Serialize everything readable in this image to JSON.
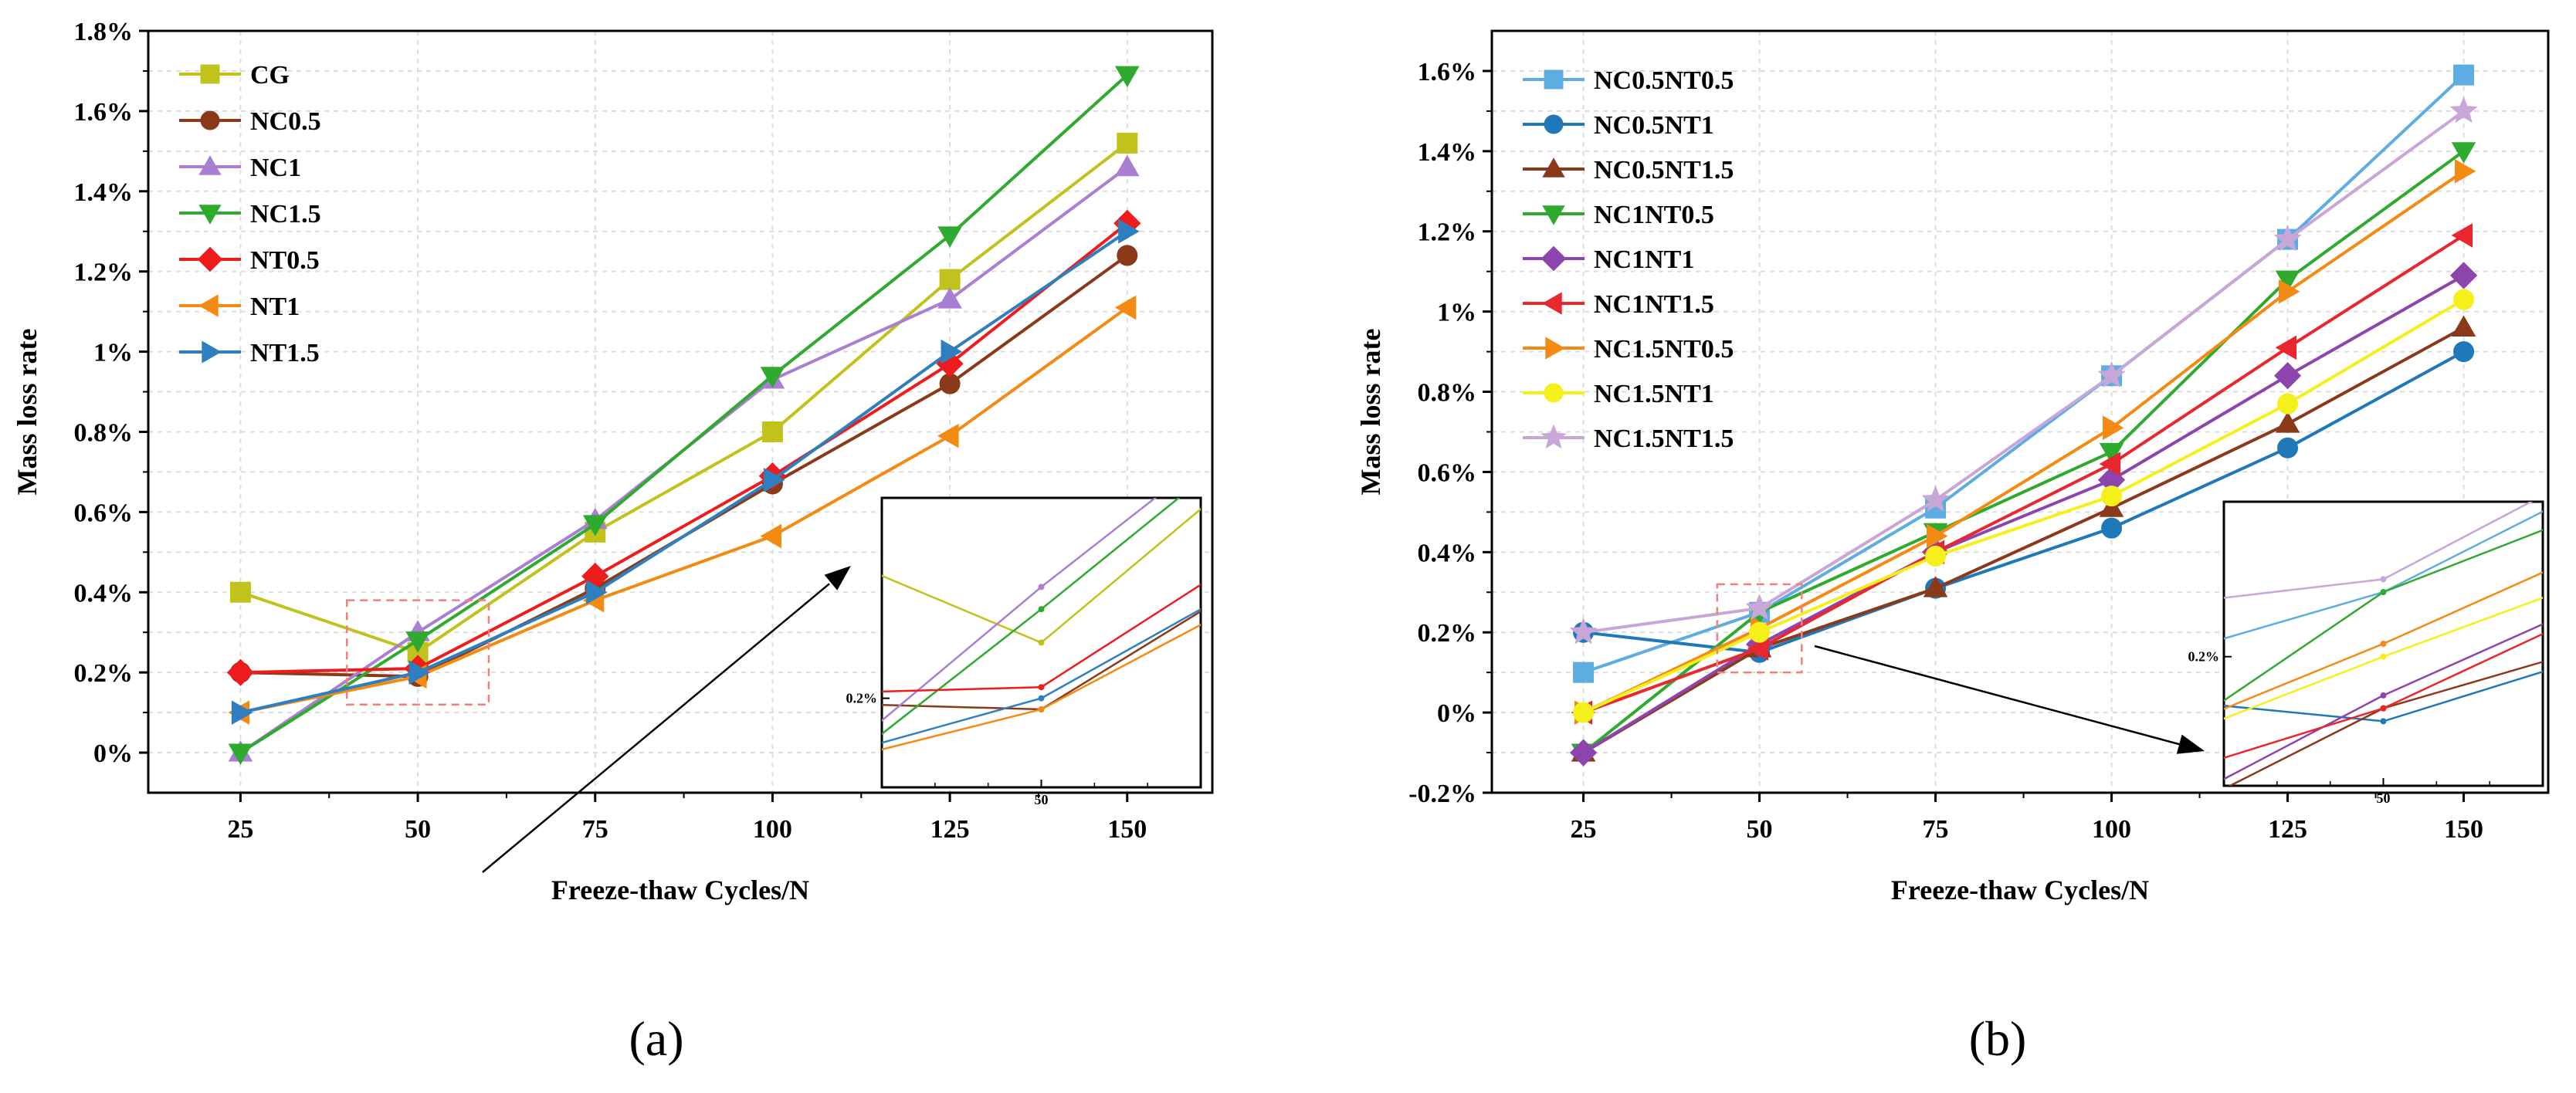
{
  "colors": {
    "CG": "#c2c21c",
    "NC0.5": "#8b3a19",
    "NC1": "#a97fd3",
    "NC1.5": "#2eaa2e",
    "NT0.5": "#ee1c1c",
    "NT1": "#f58a12",
    "NT1.5": "#2e7fc0",
    "NC0.5NT0.5": "#5dade2",
    "NC0.5NT1": "#1f78b8",
    "NC0.5NT1.5": "#8b3a19",
    "NC1NT0.5": "#2eaa2e",
    "NC1NT1": "#8e44ad",
    "NC1NT1.5": "#e8272e",
    "NC1.5NT0.5": "#f58a12",
    "NC1.5NT1": "#f5f01a",
    "NC1.5NT1.5": "#c9a6d8",
    "zoom_box": "#f08080",
    "grid": "#dddddd"
  },
  "chart_data": [
    {
      "type": "line",
      "panel_label": "(a)",
      "xlabel": "Freeze-thaw Cycles/N",
      "ylabel": "Mass loss rate",
      "xlim": [
        12,
        162
      ],
      "ylim": [
        -0.1,
        1.8
      ],
      "x": [
        25,
        50,
        75,
        100,
        125,
        150
      ],
      "x_tick_labels": [
        "25",
        "50",
        "75",
        "100",
        "125",
        "150"
      ],
      "y_ticks": [
        0,
        0.2,
        0.4,
        0.6,
        0.8,
        1.0,
        1.2,
        1.4,
        1.6,
        1.8
      ],
      "y_tick_labels": [
        "0%",
        "0.2%",
        "0.4%",
        "0.6%",
        "0.8%",
        "1%",
        "1.2%",
        "1.4%",
        "1.6%",
        "1.8%"
      ],
      "grid": true,
      "legend_position": "top-left",
      "series": [
        {
          "name": "CG",
          "marker": "square",
          "values": [
            0.4,
            0.25,
            0.55,
            0.8,
            1.18,
            1.52
          ]
        },
        {
          "name": "NC0.5",
          "marker": "circle",
          "values": [
            0.2,
            0.19,
            0.41,
            0.67,
            0.92,
            1.24
          ]
        },
        {
          "name": "NC1",
          "marker": "triangle-up",
          "values": [
            0.0,
            0.3,
            0.58,
            0.93,
            1.13,
            1.46
          ]
        },
        {
          "name": "NC1.5",
          "marker": "triangle-down",
          "values": [
            0.0,
            0.28,
            0.57,
            0.94,
            1.29,
            1.69
          ]
        },
        {
          "name": "NT0.5",
          "marker": "diamond",
          "values": [
            0.2,
            0.21,
            0.44,
            0.69,
            0.97,
            1.32
          ]
        },
        {
          "name": "NT1",
          "marker": "triangle-left",
          "values": [
            0.1,
            0.19,
            0.38,
            0.54,
            0.79,
            1.11
          ]
        },
        {
          "name": "NT1.5",
          "marker": "triangle-right",
          "values": [
            0.1,
            0.2,
            0.4,
            0.68,
            1.0,
            1.3
          ]
        }
      ],
      "inset": {
        "x_tick_label": "50",
        "y_tick_label": "0.2%",
        "xlim": [
          40,
          60
        ],
        "ylim": [
          0.12,
          0.38
        ]
      }
    },
    {
      "type": "line",
      "panel_label": "(b)",
      "xlabel": "Freeze-thaw Cycles/N",
      "ylabel": "Mass loss rate",
      "xlim": [
        12,
        162
      ],
      "ylim": [
        -0.2,
        1.7
      ],
      "x": [
        25,
        50,
        75,
        100,
        125,
        150
      ],
      "x_tick_labels": [
        "25",
        "50",
        "75",
        "100",
        "125",
        "150"
      ],
      "y_ticks": [
        -0.2,
        0,
        0.2,
        0.4,
        0.6,
        0.8,
        1.0,
        1.2,
        1.4,
        1.6
      ],
      "y_tick_labels": [
        "-0.2%",
        "0%",
        "0.2%",
        "0.4%",
        "0.6%",
        "0.8%",
        "1%",
        "1.2%",
        "1.4%",
        "1.6%"
      ],
      "grid": true,
      "legend_position": "top-left",
      "series": [
        {
          "name": "NC0.5NT0.5",
          "marker": "square",
          "values": [
            0.1,
            0.25,
            0.51,
            0.84,
            1.18,
            1.59
          ]
        },
        {
          "name": "NC0.5NT1",
          "marker": "circle",
          "values": [
            0.2,
            0.15,
            0.31,
            0.46,
            0.66,
            0.9
          ]
        },
        {
          "name": "NC0.5NT1.5",
          "marker": "triangle-up",
          "values": [
            -0.1,
            0.16,
            0.31,
            0.51,
            0.72,
            0.96
          ]
        },
        {
          "name": "NC1NT0.5",
          "marker": "triangle-down",
          "values": [
            -0.1,
            0.25,
            0.45,
            0.65,
            1.08,
            1.4
          ]
        },
        {
          "name": "NC1NT1",
          "marker": "diamond",
          "values": [
            -0.1,
            0.17,
            0.4,
            0.58,
            0.84,
            1.09
          ]
        },
        {
          "name": "NC1NT1.5",
          "marker": "triangle-left",
          "values": [
            0.0,
            0.16,
            0.4,
            0.62,
            0.91,
            1.19
          ]
        },
        {
          "name": "NC1.5NT0.5",
          "marker": "triangle-right",
          "values": [
            0.0,
            0.21,
            0.44,
            0.71,
            1.05,
            1.35
          ]
        },
        {
          "name": "NC1.5NT1",
          "marker": "circle",
          "values": [
            0.0,
            0.2,
            0.39,
            0.54,
            0.77,
            1.03
          ]
        },
        {
          "name": "NC1.5NT1.5",
          "marker": "star",
          "values": [
            0.2,
            0.26,
            0.53,
            0.84,
            1.18,
            1.5
          ]
        }
      ],
      "inset": {
        "x_tick_label": "50",
        "y_tick_label": "0.2%",
        "xlim": [
          44,
          56
        ],
        "ylim": [
          0.1,
          0.32
        ]
      }
    }
  ]
}
